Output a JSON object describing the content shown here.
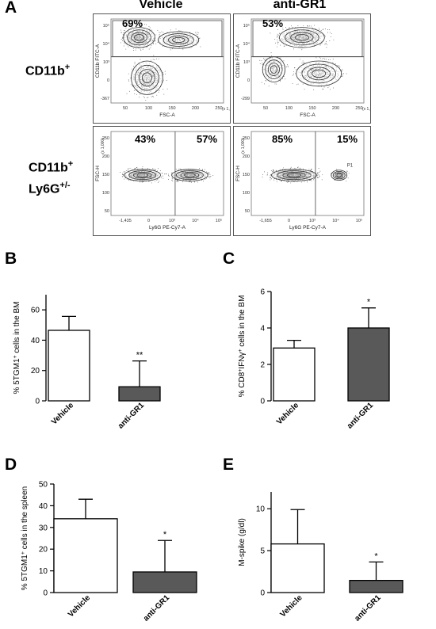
{
  "panel_a": {
    "letter": "A",
    "columns": [
      "Vehicle",
      "anti-GR1"
    ],
    "row1_label": "CD11b",
    "row1_sup": "+",
    "row2_label_line1": "CD11b",
    "row2_sup1": "+",
    "row2_label_line2": "Ly6G",
    "row2_sup2": "+/-",
    "plots": [
      {
        "pcts": [
          "69%"
        ],
        "xlabel": "FSC-A",
        "ylabel": "CD11b FITC-A",
        "xmult": "(x 1,000)",
        "xticks": [
          "50",
          "100",
          "150",
          "200",
          "250"
        ],
        "yticks": [
          "10⁵",
          "10⁴",
          "10³",
          "0",
          "-367"
        ]
      },
      {
        "pcts": [
          "53%"
        ],
        "xlabel": "FSC-A",
        "ylabel": "CD11b FITC-A",
        "xmult": "(x 1,000)",
        "xticks": [
          "50",
          "100",
          "150",
          "200",
          "250"
        ],
        "yticks": [
          "10⁵",
          "10⁴",
          "10³",
          "0",
          "-299"
        ]
      },
      {
        "pcts": [
          "43%",
          "57%"
        ],
        "xlabel": "Ly6G PE-Cy7-A",
        "ylabel": "FSC-H",
        "ymult": "(x 1,000)",
        "xticks": [
          "-1,435",
          "0",
          "10³",
          "10⁴",
          "10⁵"
        ],
        "yticks": [
          "250",
          "200",
          "150",
          "100",
          "50"
        ]
      },
      {
        "pcts": [
          "85%",
          "15%"
        ],
        "xlabel": "Ly6G PE-Cy7-A",
        "ylabel": "FSC-H",
        "ymult": "(x 1,000)",
        "xticks": [
          "-1,655",
          "0",
          "10³",
          "10⁴",
          "10⁵"
        ],
        "yticks": [
          "250",
          "200",
          "150",
          "100",
          "50"
        ],
        "gate_label": "P1"
      }
    ]
  },
  "chart_data": [
    {
      "panel": "B",
      "type": "bar",
      "categories": [
        "Vehicle",
        "anti-GR1"
      ],
      "values": [
        46.5,
        9.3
      ],
      "errors": [
        9.2,
        17
      ],
      "significance": [
        "",
        "**"
      ],
      "ylabel_parts": [
        "% 5TGM1",
        "+",
        " cells in the BM"
      ],
      "ylim": [
        0,
        70
      ],
      "yticks": [
        0,
        20,
        40,
        60
      ],
      "fills": [
        "#ffffff",
        "#595959"
      ]
    },
    {
      "panel": "C",
      "type": "bar",
      "categories": [
        "Vehicle",
        "anti-GR1"
      ],
      "values": [
        2.9,
        4.0
      ],
      "errors": [
        0.42,
        1.1
      ],
      "significance": [
        "",
        "*"
      ],
      "ylabel_parts": [
        "% CD8",
        "+",
        "IFNγ",
        "+",
        " cells in the BM"
      ],
      "ylim": [
        0,
        6
      ],
      "yticks": [
        0,
        2,
        4,
        6
      ],
      "fills": [
        "#ffffff",
        "#595959"
      ]
    },
    {
      "panel": "D",
      "type": "bar",
      "categories": [
        "Vehicle",
        "anti-GR1"
      ],
      "values": [
        34,
        9.5
      ],
      "errors": [
        9,
        14.5
      ],
      "significance": [
        "",
        "*"
      ],
      "ylabel_parts": [
        "% 5TGM1",
        "+",
        " cells in the spleen"
      ],
      "ylim": [
        0,
        50
      ],
      "yticks": [
        0,
        10,
        20,
        30,
        40,
        50
      ],
      "fills": [
        "#ffffff",
        "#595959"
      ]
    },
    {
      "panel": "E",
      "type": "bar",
      "categories": [
        "Vehicle",
        "anti-GR1"
      ],
      "values": [
        5.8,
        1.45
      ],
      "errors": [
        4.1,
        2.2
      ],
      "significance": [
        "",
        "*"
      ],
      "ylabel_parts": [
        "M-spike (g/dl)"
      ],
      "ylim": [
        0,
        12
      ],
      "yticks": [
        0,
        5,
        10
      ],
      "fills": [
        "#ffffff",
        "#595959"
      ]
    }
  ]
}
